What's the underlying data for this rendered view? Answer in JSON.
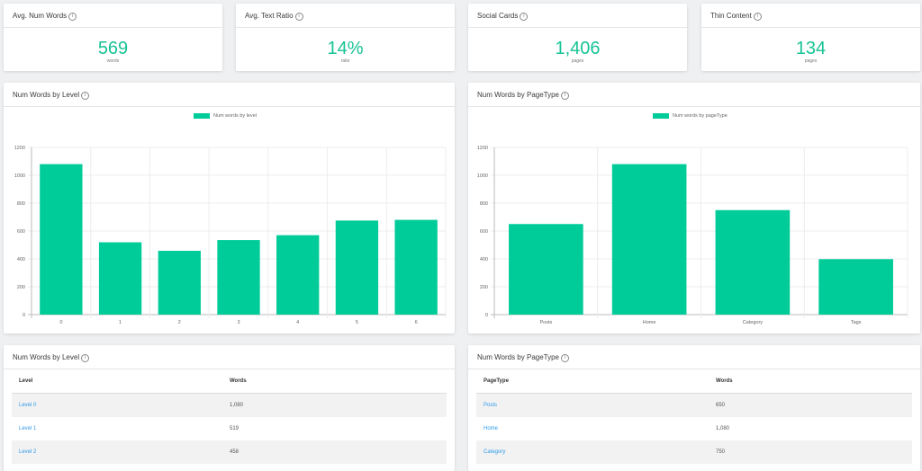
{
  "metrics": [
    {
      "title": "Avg. Num Words",
      "value": "569",
      "unit": "words"
    },
    {
      "title": "Avg. Text Ratio",
      "value": "14%",
      "unit": "ratio"
    },
    {
      "title": "Social Cards",
      "value": "1,406",
      "unit": "pages"
    },
    {
      "title": "Thin Content",
      "value": "134",
      "unit": "pages"
    }
  ],
  "info_glyph": "i",
  "chart_level": {
    "title": "Num Words by Level"
  },
  "chart_pagetype": {
    "title": "Num Words by PageType"
  },
  "table_level": {
    "title": "Num Words by Level",
    "headers": [
      "Level",
      "Words"
    ],
    "rows": [
      [
        "Level 0",
        "1,080"
      ],
      [
        "Level 1",
        "519"
      ],
      [
        "Level 2",
        "458"
      ]
    ]
  },
  "table_pagetype": {
    "title": "Num Words by PageType",
    "headers": [
      "PageType",
      "Words"
    ],
    "rows": [
      [
        "Posts",
        "650"
      ],
      [
        "Home",
        "1,080"
      ],
      [
        "Category",
        "750"
      ]
    ]
  },
  "chart_data": [
    {
      "type": "bar",
      "title": "Num Words by Level",
      "categories": [
        "0",
        "1",
        "2",
        "3",
        "4",
        "5",
        "6"
      ],
      "series": [
        {
          "name": "Num words by level",
          "values": [
            1080,
            519,
            458,
            535,
            570,
            675,
            680
          ]
        }
      ],
      "ylim": [
        0,
        1200
      ],
      "yticks": [
        "0",
        "200",
        "400",
        "600",
        "800",
        "1000",
        "1200"
      ],
      "grid": true,
      "legend": "top-center",
      "color": "#00cc99"
    },
    {
      "type": "bar",
      "title": "Num Words by PageType",
      "categories": [
        "Posts",
        "Home",
        "Category",
        "Tags"
      ],
      "series": [
        {
          "name": "Num words by pageType",
          "values": [
            650,
            1080,
            750,
            398
          ]
        }
      ],
      "ylim": [
        0,
        1200
      ],
      "yticks": [
        "0",
        "200",
        "400",
        "600",
        "800",
        "1000",
        "1200"
      ],
      "grid": true,
      "legend": "top-center",
      "color": "#00cc99"
    }
  ]
}
